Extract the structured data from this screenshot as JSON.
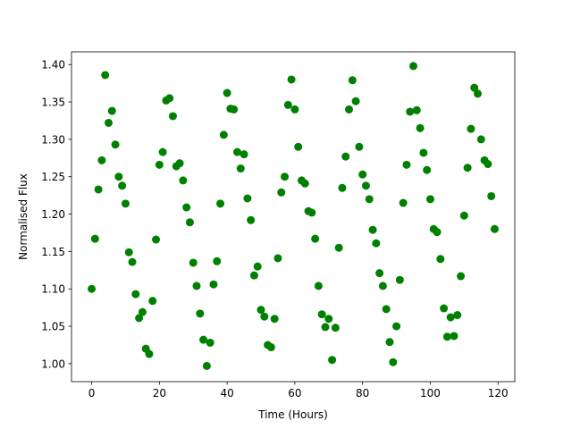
{
  "chart_data": {
    "type": "scatter",
    "xlabel": "Time (Hours)",
    "ylabel": "Normalised Flux",
    "color": "green",
    "x": [
      0,
      1,
      2,
      3,
      4,
      5,
      6,
      7,
      8,
      9,
      10,
      11,
      12,
      13,
      14,
      15,
      16,
      17,
      18,
      19,
      20,
      21,
      22,
      23,
      24,
      25,
      26,
      27,
      28,
      29,
      30,
      31,
      32,
      33,
      34,
      35,
      36,
      37,
      38,
      39,
      40,
      41,
      42,
      43,
      44,
      45,
      46,
      47,
      48,
      49,
      50,
      51,
      52,
      53,
      54,
      55,
      56,
      57,
      58,
      59,
      60,
      61,
      62,
      63,
      64,
      65,
      66,
      67,
      68,
      69,
      70,
      71,
      72,
      73,
      74,
      75,
      76,
      77,
      78,
      79,
      80,
      81,
      82,
      83,
      84,
      85,
      86,
      87,
      88,
      89,
      90,
      91,
      92,
      93,
      94,
      95,
      96,
      97,
      98,
      99,
      100,
      101,
      102,
      103,
      104,
      105,
      106,
      107,
      108,
      109,
      110,
      111,
      112,
      113,
      114,
      115,
      116,
      117,
      118,
      119
    ],
    "values": [
      1.1,
      1.167,
      1.233,
      1.272,
      1.386,
      1.322,
      1.338,
      1.293,
      1.25,
      1.238,
      1.214,
      1.149,
      1.136,
      1.093,
      1.061,
      1.069,
      1.02,
      1.013,
      1.084,
      1.166,
      1.266,
      1.283,
      1.352,
      1.355,
      1.331,
      1.264,
      1.268,
      1.245,
      1.209,
      1.189,
      1.135,
      1.104,
      1.067,
      1.032,
      0.997,
      1.028,
      1.106,
      1.137,
      1.214,
      1.306,
      1.362,
      1.341,
      1.34,
      1.283,
      1.261,
      1.28,
      1.221,
      1.192,
      1.118,
      1.13,
      1.072,
      1.063,
      1.025,
      1.022,
      1.06,
      1.141,
      1.229,
      1.25,
      1.346,
      1.38,
      1.34,
      1.29,
      1.245,
      1.241,
      1.204,
      1.202,
      1.167,
      1.104,
      1.066,
      1.049,
      1.06,
      1.005,
      1.048,
      1.155,
      1.235,
      1.277,
      1.34,
      1.379,
      1.351,
      1.29,
      1.253,
      1.238,
      1.22,
      1.179,
      1.161,
      1.121,
      1.104,
      1.073,
      1.029,
      1.002,
      1.05,
      1.112,
      1.215,
      1.266,
      1.337,
      1.398,
      1.339,
      1.315,
      1.282,
      1.259,
      1.22,
      1.18,
      1.176,
      1.14,
      1.074,
      1.036,
      1.062,
      1.037,
      1.065,
      1.117,
      1.198,
      1.262,
      1.314,
      1.369,
      1.361,
      1.3,
      1.272,
      1.267,
      1.224,
      1.18
    ],
    "xlim": [
      -5.95,
      124.95
    ],
    "xticks": [
      0,
      20,
      40,
      60,
      80,
      100,
      120
    ],
    "ylim": [
      0.976,
      1.417
    ],
    "yticks": [
      {
        "value": 1.0,
        "label": "1.00"
      },
      {
        "value": 1.05,
        "label": "1.05"
      },
      {
        "value": 1.1,
        "label": "1.10"
      },
      {
        "value": 1.15,
        "label": "1.15"
      },
      {
        "value": 1.2,
        "label": "1.20"
      },
      {
        "value": 1.25,
        "label": "1.25"
      },
      {
        "value": 1.3,
        "label": "1.30"
      },
      {
        "value": 1.35,
        "label": "1.35"
      },
      {
        "value": 1.4,
        "label": "1.40"
      }
    ]
  }
}
